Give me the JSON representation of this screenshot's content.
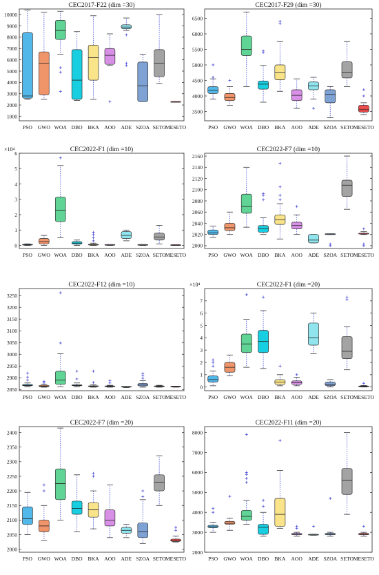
{
  "colors": {
    "PSO": "#52b8ea",
    "GWO": "#f0946a",
    "WOA": "#5fd495",
    "DBO": "#17cfe0",
    "BKA": "#fae48a",
    "AOO": "#d88fe6",
    "ADE": "#8fe4ee",
    "SZOA": "#7fa2d4",
    "SETO": "#a3a3a3",
    "MESETO": "#ea4b4b",
    "whisker": "#5560d6",
    "outlier": "#4c4cd8",
    "median": "#222222"
  },
  "chart_data": [
    {
      "type": "box",
      "title": "CEC2017-F22 (dim =30)",
      "categories": [
        "PSO",
        "GWO",
        "WOA",
        "DBO",
        "BKA",
        "AOO",
        "ADE",
        "SZOA",
        "SETO",
        "MESETO"
      ],
      "ylim": [
        600,
        10500
      ],
      "yticks": [
        1000,
        2000,
        3000,
        4000,
        5000,
        6000,
        7000,
        8000,
        9000,
        10000
      ],
      "boxes": [
        {
          "min": 2500,
          "q1": 2600,
          "median": 2800,
          "q3": 8400,
          "max": 10400,
          "outliers": []
        },
        {
          "min": 2500,
          "q1": 2900,
          "median": 5700,
          "q3": 6700,
          "max": 10200,
          "outliers": []
        },
        {
          "min": 6500,
          "q1": 7800,
          "median": 8600,
          "q3": 9500,
          "max": 10300,
          "outliers": [
            5300,
            4900,
            3200
          ]
        },
        {
          "min": 2400,
          "q1": 2500,
          "median": 4200,
          "q3": 6900,
          "max": 8500,
          "outliers": []
        },
        {
          "min": 2500,
          "q1": 4200,
          "median": 6200,
          "q3": 7300,
          "max": 9900,
          "outliers": []
        },
        {
          "min": 5500,
          "q1": 5600,
          "median": 6400,
          "q3": 7000,
          "max": 8300,
          "outliers": [
            2300
          ]
        },
        {
          "min": 8600,
          "q1": 8750,
          "median": 8900,
          "q3": 9100,
          "max": 9700,
          "outliers": [
            8200,
            5700,
            5500
          ]
        },
        {
          "min": 2300,
          "q1": 2300,
          "median": 3700,
          "q3": 5800,
          "max": 6500,
          "outliers": []
        },
        {
          "min": 3900,
          "q1": 4500,
          "median": 5700,
          "q3": 6900,
          "max": 10000,
          "outliers": []
        },
        {
          "min": 2250,
          "q1": 2250,
          "median": 2250,
          "q3": 2250,
          "max": 2250,
          "outliers": []
        }
      ]
    },
    {
      "type": "box",
      "title": "CEC2017-F29 (dim =30)",
      "categories": [
        "PSO",
        "GWO",
        "WOA",
        "DBO",
        "BKA",
        "AOO",
        "ADE",
        "SZOA",
        "SETO",
        "MESETO"
      ],
      "ylim": [
        3200,
        6800
      ],
      "yticks": [
        3500,
        4000,
        4500,
        5000,
        5500,
        6000,
        6500
      ],
      "boxes": [
        {
          "min": 3900,
          "q1": 4080,
          "median": 4180,
          "q3": 4300,
          "max": 4550,
          "outliers": [
            5000,
            4600
          ]
        },
        {
          "min": 3700,
          "q1": 3850,
          "median": 3950,
          "q3": 4080,
          "max": 4300,
          "outliers": [
            4500
          ]
        },
        {
          "min": 4300,
          "q1": 5300,
          "median": 5500,
          "q3": 5930,
          "max": 6700,
          "outliers": []
        },
        {
          "min": 3800,
          "q1": 4220,
          "median": 4380,
          "q3": 4480,
          "max": 4980,
          "outliers": [
            5400,
            5450
          ]
        },
        {
          "min": 4150,
          "q1": 4520,
          "median": 4750,
          "q3": 5000,
          "max": 5750,
          "outliers": [
            6400,
            6330
          ]
        },
        {
          "min": 3600,
          "q1": 3850,
          "median": 4020,
          "q3": 4200,
          "max": 4550,
          "outliers": []
        },
        {
          "min": 3900,
          "q1": 4200,
          "median": 4320,
          "q3": 4450,
          "max": 4600,
          "outliers": [
            3600
          ]
        },
        {
          "min": 3300,
          "q1": 3780,
          "median": 4050,
          "q3": 4200,
          "max": 4300,
          "outliers": []
        },
        {
          "min": 4300,
          "q1": 4580,
          "median": 4750,
          "q3": 5100,
          "max": 5750,
          "outliers": []
        },
        {
          "min": 3400,
          "q1": 3480,
          "median": 3560,
          "q3": 3700,
          "max": 3780,
          "outliers": [
            4200,
            4000
          ]
        }
      ]
    },
    {
      "type": "box",
      "title": "CEC2022-F1 (dim =10)",
      "exponent_label": "×10⁴",
      "categories": [
        "PSO",
        "GWO",
        "WOA",
        "DBO",
        "BKA",
        "AOO",
        "ADE",
        "SZOA",
        "SETO",
        "MESETO"
      ],
      "ylim": [
        -0.2,
        6.0
      ],
      "yticks": [
        0,
        1,
        2,
        3,
        4,
        5,
        6
      ],
      "boxes": [
        {
          "min": 0.0,
          "q1": 0.02,
          "median": 0.04,
          "q3": 0.06,
          "max": 0.1,
          "outliers": []
        },
        {
          "min": 0.0,
          "q1": 0.1,
          "median": 0.25,
          "q3": 0.45,
          "max": 0.65,
          "outliers": []
        },
        {
          "min": 0.5,
          "q1": 1.55,
          "median": 2.3,
          "q3": 3.15,
          "max": 5.2,
          "outliers": [
            5.7
          ]
        },
        {
          "min": 0.0,
          "q1": 0.08,
          "median": 0.15,
          "q3": 0.25,
          "max": 0.35,
          "outliers": []
        },
        {
          "min": 0.0,
          "q1": 0.02,
          "median": 0.04,
          "q3": 0.08,
          "max": 0.15,
          "outliers": [
            0.3,
            0.5,
            0.7,
            0.85
          ]
        },
        {
          "min": 0.0,
          "q1": 0.01,
          "median": 0.02,
          "q3": 0.03,
          "max": 0.05,
          "outliers": []
        },
        {
          "min": 0.3,
          "q1": 0.45,
          "median": 0.65,
          "q3": 0.9,
          "max": 1.0,
          "outliers": []
        },
        {
          "min": 0.0,
          "q1": 0.01,
          "median": 0.02,
          "q3": 0.03,
          "max": 0.05,
          "outliers": []
        },
        {
          "min": 0.1,
          "q1": 0.35,
          "median": 0.55,
          "q3": 0.8,
          "max": 1.3,
          "outliers": []
        },
        {
          "min": 0.0,
          "q1": 0.0,
          "median": 0.01,
          "q3": 0.02,
          "max": 0.03,
          "outliers": []
        }
      ]
    },
    {
      "type": "box",
      "title": "CEC2022-F7 (dim =10)",
      "categories": [
        "PSO",
        "GWO",
        "WOA",
        "DBO",
        "BKA",
        "AOO",
        "ADE",
        "SZOA",
        "SETO",
        "MESETO"
      ],
      "ylim": [
        1995,
        2165
      ],
      "yticks": [
        2000,
        2020,
        2040,
        2060,
        2080,
        2100,
        2120,
        2140,
        2160
      ],
      "boxes": [
        {
          "min": 2015,
          "q1": 2020,
          "median": 2023,
          "q3": 2028,
          "max": 2035,
          "outliers": []
        },
        {
          "min": 2020,
          "q1": 2027,
          "median": 2032,
          "q3": 2040,
          "max": 2060,
          "outliers": []
        },
        {
          "min": 2033,
          "q1": 2058,
          "median": 2070,
          "q3": 2092,
          "max": 2140,
          "outliers": []
        },
        {
          "min": 2020,
          "q1": 2024,
          "median": 2030,
          "q3": 2036,
          "max": 2050,
          "outliers": [
            2082,
            2090,
            2093
          ]
        },
        {
          "min": 2012,
          "q1": 2038,
          "median": 2046,
          "q3": 2055,
          "max": 2075,
          "outliers": [
            2082,
            2090,
            2105,
            2147
          ]
        },
        {
          "min": 2020,
          "q1": 2030,
          "median": 2036,
          "q3": 2042,
          "max": 2055,
          "outliers": [
            2070
          ]
        },
        {
          "min": 2005,
          "q1": 2005,
          "median": 2010,
          "q3": 2020,
          "max": 2020,
          "outliers": []
        },
        {
          "min": 2020,
          "q1": 2020,
          "median": 2020,
          "q3": 2020,
          "max": 2020,
          "outliers": [
            2000,
            2003
          ]
        },
        {
          "min": 2065,
          "q1": 2088,
          "median": 2108,
          "q3": 2117,
          "max": 2160,
          "outliers": []
        },
        {
          "min": 2020,
          "q1": 2021,
          "median": 2021,
          "q3": 2022,
          "max": 2025,
          "outliers": [
            2030,
            2003,
            2000
          ]
        }
      ]
    },
    {
      "type": "box",
      "title": "CEC2022-F12 (dim =10)",
      "categories": [
        "PSO",
        "GWO",
        "WOA",
        "DBO",
        "BKA",
        "AOO",
        "ADE",
        "SZOA",
        "SETO",
        "MESETO"
      ],
      "ylim": [
        2845,
        3280
      ],
      "yticks": [
        2850,
        2900,
        2950,
        3000,
        3050,
        3100,
        3150,
        3200,
        3250
      ],
      "boxes": [
        {
          "min": 2862,
          "q1": 2866,
          "median": 2868,
          "q3": 2872,
          "max": 2878,
          "outliers": [
            2890,
            2903,
            2920
          ]
        },
        {
          "min": 2860,
          "q1": 2862,
          "median": 2864,
          "q3": 2868,
          "max": 2872,
          "outliers": [
            2878,
            2885
          ]
        },
        {
          "min": 2862,
          "q1": 2872,
          "median": 2890,
          "q3": 2928,
          "max": 3002,
          "outliers": [
            3048,
            3262
          ]
        },
        {
          "min": 2862,
          "q1": 2866,
          "median": 2868,
          "q3": 2870,
          "max": 2878,
          "outliers": [
            2895,
            2928
          ]
        },
        {
          "min": 2860,
          "q1": 2862,
          "median": 2864,
          "q3": 2866,
          "max": 2870,
          "outliers": [
            2880,
            2928
          ]
        },
        {
          "min": 2860,
          "q1": 2862,
          "median": 2863,
          "q3": 2864,
          "max": 2868,
          "outliers": [
            2878,
            2888
          ]
        },
        {
          "min": 2858,
          "q1": 2860,
          "median": 2861,
          "q3": 2862,
          "max": 2863,
          "outliers": []
        },
        {
          "min": 2860,
          "q1": 2865,
          "median": 2869,
          "q3": 2876,
          "max": 2888,
          "outliers": [
            2898,
            2910,
            2918
          ]
        },
        {
          "min": 2860,
          "q1": 2862,
          "median": 2863,
          "q3": 2865,
          "max": 2868,
          "outliers": []
        },
        {
          "min": 2860,
          "q1": 2861,
          "median": 2862,
          "q3": 2863,
          "max": 2864,
          "outliers": []
        }
      ]
    },
    {
      "type": "box",
      "title": "CEC2022-F1 (dim =20)",
      "exponent_label": "×10⁴",
      "categories": [
        "PSO",
        "GWO",
        "WOA",
        "DBO",
        "BKA",
        "AOO",
        "ADE",
        "SZOA",
        "SETO",
        "MESETO"
      ],
      "ylim": [
        -0.3,
        8.0
      ],
      "yticks": [
        0,
        1,
        2,
        3,
        4,
        5,
        6,
        7
      ],
      "boxes": [
        {
          "min": 0.1,
          "q1": 0.4,
          "median": 0.6,
          "q3": 0.9,
          "max": 1.3,
          "outliers": [
            1.7,
            2.0,
            2.2
          ]
        },
        {
          "min": 0.9,
          "q1": 1.2,
          "median": 1.6,
          "q3": 2.0,
          "max": 2.6,
          "outliers": []
        },
        {
          "min": 1.6,
          "q1": 2.8,
          "median": 3.5,
          "q3": 4.3,
          "max": 5.5,
          "outliers": [
            7.5
          ]
        },
        {
          "min": 1.5,
          "q1": 2.8,
          "median": 3.7,
          "q3": 4.6,
          "max": 6.2,
          "outliers": [
            7.3
          ]
        },
        {
          "min": 0.1,
          "q1": 0.2,
          "median": 0.4,
          "q3": 0.6,
          "max": 1.0,
          "outliers": [
            1.7
          ]
        },
        {
          "min": 0.1,
          "q1": 0.2,
          "median": 0.35,
          "q3": 0.5,
          "max": 0.8,
          "outliers": [
            1.0
          ]
        },
        {
          "min": 2.7,
          "q1": 3.4,
          "median": 4.0,
          "q3": 5.2,
          "max": 6.0,
          "outliers": []
        },
        {
          "min": 0.0,
          "q1": 0.1,
          "median": 0.2,
          "q3": 0.4,
          "max": 0.6,
          "outliers": []
        },
        {
          "min": 1.4,
          "q1": 2.3,
          "median": 2.9,
          "q3": 4.1,
          "max": 4.9,
          "outliers": [
            7.1,
            7.3
          ]
        },
        {
          "min": 0.0,
          "q1": 0.02,
          "median": 0.05,
          "q3": 0.08,
          "max": 0.12,
          "outliers": [
            0.3
          ]
        }
      ]
    },
    {
      "type": "box",
      "title": "CEC2022-F7 (dim =20)",
      "categories": [
        "PSO",
        "GWO",
        "WOA",
        "DBO",
        "BKA",
        "AOO",
        "ADE",
        "SZOA",
        "SETO",
        "MESETO"
      ],
      "ylim": [
        1990,
        2420
      ],
      "yticks": [
        2000,
        2050,
        2100,
        2150,
        2200,
        2250,
        2300,
        2350,
        2400
      ],
      "boxes": [
        {
          "min": 2050,
          "q1": 2085,
          "median": 2105,
          "q3": 2145,
          "max": 2195,
          "outliers": []
        },
        {
          "min": 2030,
          "q1": 2060,
          "median": 2080,
          "q3": 2100,
          "max": 2150,
          "outliers": [
            2200,
            2220
          ]
        },
        {
          "min": 2100,
          "q1": 2170,
          "median": 2225,
          "q3": 2275,
          "max": 2415,
          "outliers": []
        },
        {
          "min": 2060,
          "q1": 2120,
          "median": 2140,
          "q3": 2165,
          "max": 2255,
          "outliers": []
        },
        {
          "min": 2070,
          "q1": 2110,
          "median": 2135,
          "q3": 2160,
          "max": 2200,
          "outliers": [
            2250,
            2260
          ]
        },
        {
          "min": 2040,
          "q1": 2080,
          "median": 2100,
          "q3": 2135,
          "max": 2220,
          "outliers": []
        },
        {
          "min": 2040,
          "q1": 2055,
          "median": 2065,
          "q3": 2075,
          "max": 2085,
          "outliers": []
        },
        {
          "min": 2020,
          "q1": 2040,
          "median": 2060,
          "q3": 2090,
          "max": 2170,
          "outliers": [
            2180,
            2200
          ]
        },
        {
          "min": 2150,
          "q1": 2200,
          "median": 2230,
          "q3": 2255,
          "max": 2320,
          "outliers": []
        },
        {
          "min": 2025,
          "q1": 2027,
          "median": 2030,
          "q3": 2035,
          "max": 2045,
          "outliers": [
            2065,
            2075
          ]
        }
      ]
    },
    {
      "type": "box",
      "title": "CEC2022-F11 (dim =20)",
      "categories": [
        "PSO",
        "GWO",
        "WOA",
        "DBO",
        "BKA",
        "AOO",
        "ADE",
        "SZOA",
        "SETO",
        "MESETO"
      ],
      "ylim": [
        2000,
        8300
      ],
      "yticks": [
        2000,
        3000,
        4000,
        5000,
        6000,
        7000,
        8000
      ],
      "boxes": [
        {
          "min": 3000,
          "q1": 3230,
          "median": 3280,
          "q3": 3350,
          "max": 3500,
          "outliers": [
            4000,
            4200
          ]
        },
        {
          "min": 3100,
          "q1": 3400,
          "median": 3450,
          "q3": 3550,
          "max": 3700,
          "outliers": [
            4800
          ]
        },
        {
          "min": 3400,
          "q1": 3600,
          "median": 3800,
          "q3": 4100,
          "max": 4600,
          "outliers": [
            5500,
            5700,
            5900,
            6000,
            7900
          ]
        },
        {
          "min": 2800,
          "q1": 2900,
          "median": 3250,
          "q3": 3400,
          "max": 4000,
          "outliers": [
            4300,
            4600
          ]
        },
        {
          "min": 3200,
          "q1": 3300,
          "median": 3900,
          "q3": 4700,
          "max": 6100,
          "outliers": [
            7600
          ]
        },
        {
          "min": 2800,
          "q1": 2880,
          "median": 2900,
          "q3": 2950,
          "max": 3000,
          "outliers": [
            3200,
            3300
          ]
        },
        {
          "min": 2850,
          "q1": 2860,
          "median": 2870,
          "q3": 2880,
          "max": 2900,
          "outliers": [
            3300
          ]
        },
        {
          "min": 2800,
          "q1": 2880,
          "median": 2900,
          "q3": 2950,
          "max": 3000,
          "outliers": [
            4700
          ]
        },
        {
          "min": 3900,
          "q1": 4900,
          "median": 5600,
          "q3": 6200,
          "max": 8000,
          "outliers": []
        },
        {
          "min": 2800,
          "q1": 2880,
          "median": 2900,
          "q3": 2950,
          "max": 3000,
          "outliers": [
            3300
          ]
        }
      ]
    }
  ]
}
